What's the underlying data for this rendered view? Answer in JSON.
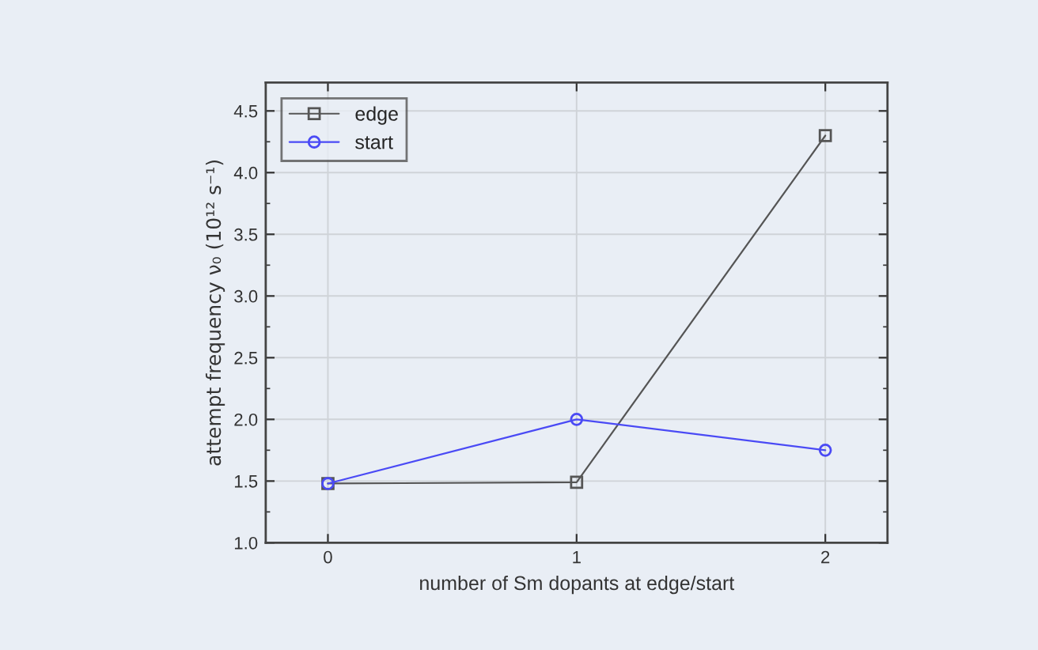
{
  "chart_data": {
    "type": "line",
    "xlabel": "number of Sm dopants at edge/start",
    "ylabel": "attempt frequency ν₀ (10¹² s⁻¹)",
    "x": [
      0,
      1,
      2
    ],
    "series": [
      {
        "name": "edge",
        "color": "#555555",
        "values": [
          1.48,
          1.49,
          4.3
        ],
        "marker": "square"
      },
      {
        "name": "start",
        "color": "#4a4af5",
        "values": [
          1.48,
          2.0,
          1.75
        ],
        "marker": "circle"
      }
    ],
    "xlim": [
      -0.25,
      2.25
    ],
    "xticks": [
      0,
      1,
      2
    ],
    "ylim": [
      1.0,
      4.73
    ],
    "yticks": [
      {
        "value": 1,
        "label": "1.0"
      },
      1.5,
      {
        "value": 2,
        "label": "2.0"
      },
      2.5,
      {
        "value": 3,
        "label": "3.0"
      },
      3.5,
      {
        "value": 4,
        "label": "4.0"
      },
      4.5
    ],
    "grid": true,
    "legend": "top left",
    "line_style": "solid"
  }
}
